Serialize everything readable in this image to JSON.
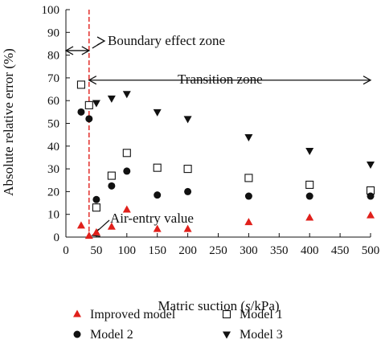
{
  "chart_data": {
    "type": "scatter",
    "xlabel_prefix": "Matric suction (",
    "xlabel_var": "s",
    "xlabel_suffix": "/kPa)",
    "ylabel": "Absolute relative error (%)",
    "xlim": [
      0,
      500
    ],
    "ylim": [
      0,
      100
    ],
    "xticks": [
      0,
      50,
      100,
      150,
      200,
      250,
      300,
      350,
      400,
      450,
      500
    ],
    "yticks": [
      0,
      10,
      20,
      30,
      40,
      50,
      60,
      70,
      80,
      90,
      100
    ],
    "grid": false,
    "legend_position": "bottom",
    "series": [
      {
        "name": "Improved model",
        "marker": "triangle-up",
        "color": "#e0201b",
        "x": [
          25,
          38,
          50,
          75,
          100,
          150,
          200,
          300,
          400,
          500
        ],
        "y": [
          5,
          0.5,
          2,
          4.5,
          12,
          3.5,
          3.5,
          6.5,
          8.5,
          9.5
        ]
      },
      {
        "name": "Model 1",
        "marker": "square-open",
        "color": "#111111",
        "x": [
          25,
          38,
          50,
          75,
          100,
          150,
          200,
          300,
          400,
          500
        ],
        "y": [
          67,
          58,
          13,
          27,
          37,
          30.5,
          30,
          26,
          23,
          20.5
        ]
      },
      {
        "name": "Model 2",
        "marker": "circle",
        "color": "#111111",
        "x": [
          25,
          38,
          50,
          75,
          100,
          150,
          200,
          300,
          400,
          500
        ],
        "y": [
          55,
          52,
          16.5,
          22.5,
          29,
          18.5,
          20,
          18,
          18,
          18
        ]
      },
      {
        "name": "Model 3",
        "marker": "triangle-down",
        "color": "#111111",
        "x": [
          50,
          75,
          100,
          150,
          200,
          300,
          400,
          500
        ],
        "y": [
          59,
          61,
          63,
          55,
          52,
          44,
          38,
          32
        ]
      }
    ],
    "vertical_line": {
      "x": 38,
      "color": "#e0201b",
      "style": "dashed"
    },
    "annotations": {
      "boundary_label": "Boundary effect zone",
      "boundary_arrow": {
        "x1": 0,
        "x2": 38,
        "y": 82
      },
      "transition_label": "Transition zone",
      "transition_arrow": {
        "x1": 38,
        "x2": 500,
        "y": 69
      },
      "air_entry_label": "Air-entry value",
      "air_entry_point": {
        "x": 38,
        "y": 0
      }
    }
  }
}
